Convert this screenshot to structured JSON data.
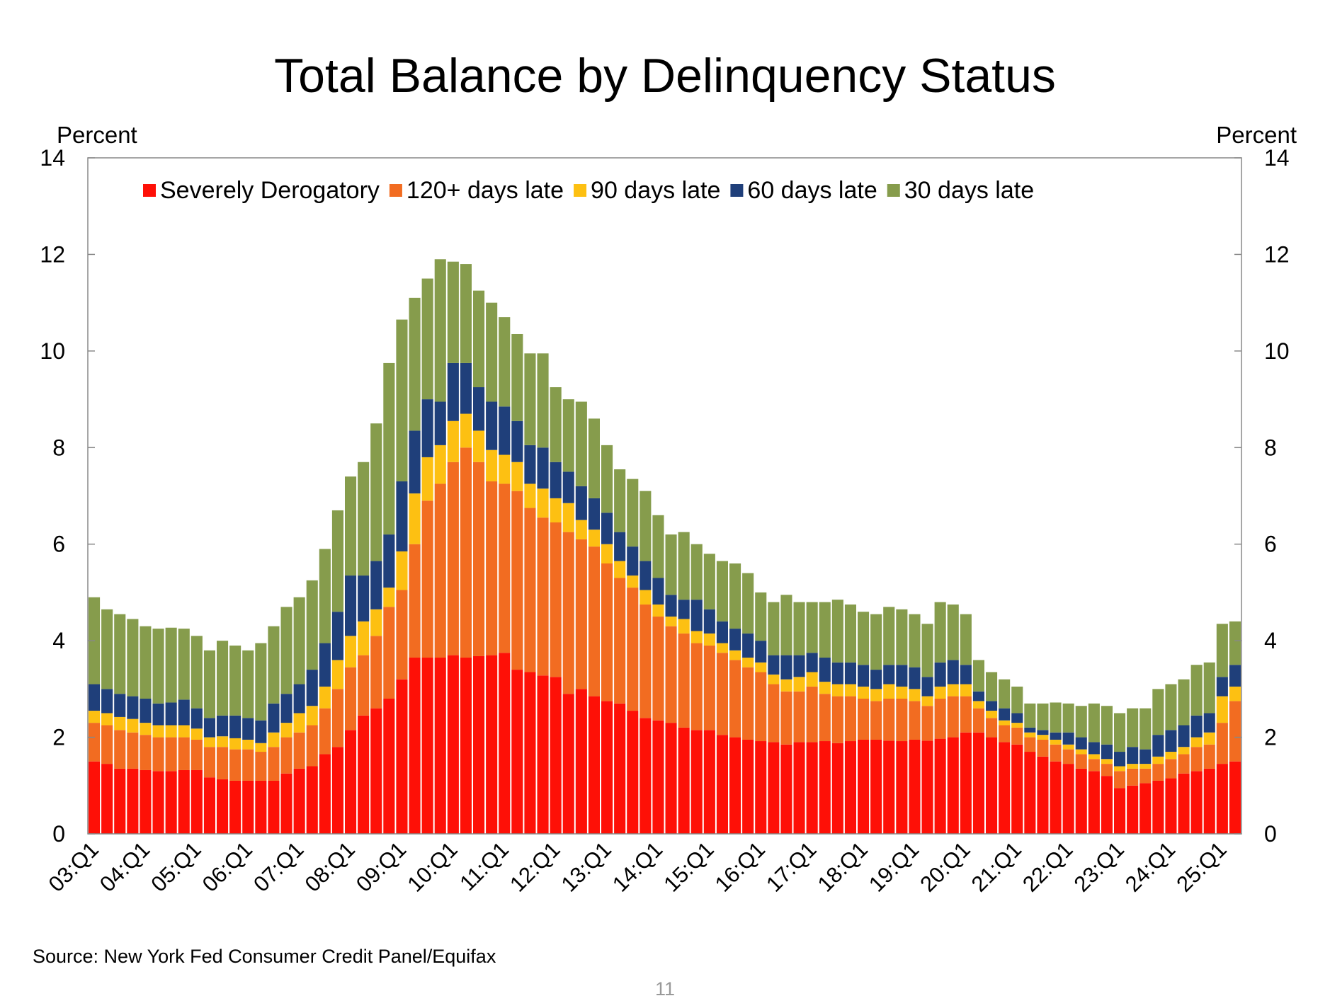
{
  "chart_data": {
    "type": "stacked_bar",
    "title": "Total Balance by Delinquency Status",
    "ylabel": "Percent",
    "y2label": "Percent",
    "source": "Source: New York Fed Consumer Credit Panel/Equifax",
    "page_number": "11",
    "ylim": [
      0,
      14
    ],
    "yticks": [
      0,
      2,
      4,
      6,
      8,
      10,
      12,
      14
    ],
    "y2lim": [
      0,
      14
    ],
    "y2ticks": [
      0,
      2,
      4,
      6,
      8,
      10,
      12,
      14
    ],
    "legend": "top",
    "categories": [
      "03:Q1",
      null,
      null,
      null,
      "04:Q1",
      null,
      null,
      null,
      "05:Q1",
      null,
      null,
      null,
      "06:Q1",
      null,
      null,
      null,
      "07:Q1",
      null,
      null,
      null,
      "08:Q1",
      null,
      null,
      null,
      "09:Q1",
      null,
      null,
      null,
      "10:Q1",
      null,
      null,
      null,
      "11:Q1",
      null,
      null,
      null,
      "12:Q1",
      null,
      null,
      null,
      "13:Q1",
      null,
      null,
      null,
      "14:Q1",
      null,
      null,
      null,
      "15:Q1",
      null,
      null,
      null,
      "16:Q1",
      null,
      null,
      null,
      "17:Q1",
      null,
      null,
      null,
      "18:Q1",
      null,
      null,
      null,
      "19:Q1",
      null,
      null,
      null,
      "20:Q1",
      null,
      null,
      null,
      "21:Q1",
      null,
      null,
      null,
      "22:Q1",
      null,
      null,
      null,
      "23:Q1",
      null,
      null,
      null,
      "24:Q1",
      null,
      null,
      null,
      "25:Q1",
      null
    ],
    "series": [
      {
        "name": "Severely Derogatory",
        "color": "#fe1007",
        "values": [
          1.5,
          1.45,
          1.35,
          1.35,
          1.32,
          1.3,
          1.3,
          1.32,
          1.32,
          1.17,
          1.13,
          1.1,
          1.1,
          1.1,
          1.1,
          1.25,
          1.35,
          1.4,
          1.65,
          1.8,
          2.15,
          2.45,
          2.6,
          2.8,
          3.2,
          3.65,
          3.65,
          3.65,
          3.7,
          3.65,
          3.68,
          3.7,
          3.75,
          3.4,
          3.35,
          3.28,
          3.25,
          2.9,
          3.0,
          2.85,
          2.75,
          2.7,
          2.55,
          2.4,
          2.35,
          2.3,
          2.2,
          2.15,
          2.15,
          2.05,
          2.0,
          1.95,
          1.92,
          1.9,
          1.85,
          1.9,
          1.9,
          1.92,
          1.88,
          1.92,
          1.95,
          1.95,
          1.93,
          1.92,
          1.95,
          1.93,
          1.97,
          2.0,
          2.1,
          2.1,
          2.0,
          1.9,
          1.85,
          1.7,
          1.6,
          1.5,
          1.45,
          1.35,
          1.3,
          1.2,
          0.95,
          1.0,
          1.05,
          1.1,
          1.15,
          1.25,
          1.3,
          1.35,
          1.45,
          1.5
        ]
      },
      {
        "name": "120+ days late",
        "color": "#f26c21",
        "values": [
          0.8,
          0.8,
          0.8,
          0.75,
          0.73,
          0.7,
          0.7,
          0.68,
          0.63,
          0.63,
          0.67,
          0.65,
          0.65,
          0.6,
          0.7,
          0.75,
          0.75,
          0.85,
          0.95,
          1.2,
          1.3,
          1.25,
          1.5,
          1.9,
          1.85,
          2.35,
          3.25,
          3.6,
          4.0,
          4.35,
          4.02,
          3.6,
          3.5,
          3.7,
          3.4,
          3.27,
          3.2,
          3.35,
          3.1,
          3.1,
          2.85,
          2.6,
          2.55,
          2.35,
          2.15,
          2.0,
          1.95,
          1.8,
          1.75,
          1.7,
          1.6,
          1.5,
          1.43,
          1.2,
          1.1,
          1.05,
          1.15,
          0.98,
          0.97,
          0.93,
          0.85,
          0.8,
          0.87,
          0.88,
          0.8,
          0.72,
          0.83,
          0.85,
          0.75,
          0.5,
          0.4,
          0.35,
          0.35,
          0.3,
          0.35,
          0.35,
          0.3,
          0.3,
          0.25,
          0.25,
          0.35,
          0.35,
          0.3,
          0.35,
          0.4,
          0.4,
          0.5,
          0.5,
          0.85,
          1.25
        ]
      },
      {
        "name": "90 days late",
        "color": "#fdc012",
        "values": [
          0.25,
          0.25,
          0.27,
          0.28,
          0.25,
          0.25,
          0.25,
          0.25,
          0.23,
          0.2,
          0.22,
          0.23,
          0.2,
          0.18,
          0.3,
          0.3,
          0.4,
          0.4,
          0.45,
          0.6,
          0.65,
          0.7,
          0.55,
          0.4,
          0.8,
          1.05,
          0.9,
          0.8,
          0.85,
          0.7,
          0.65,
          0.65,
          0.6,
          0.6,
          0.5,
          0.6,
          0.5,
          0.6,
          0.4,
          0.35,
          0.4,
          0.35,
          0.25,
          0.3,
          0.25,
          0.2,
          0.3,
          0.25,
          0.25,
          0.2,
          0.2,
          0.2,
          0.2,
          0.2,
          0.25,
          0.3,
          0.3,
          0.25,
          0.25,
          0.25,
          0.25,
          0.25,
          0.3,
          0.25,
          0.25,
          0.2,
          0.25,
          0.25,
          0.25,
          0.15,
          0.15,
          0.1,
          0.1,
          0.1,
          0.1,
          0.1,
          0.1,
          0.1,
          0.1,
          0.1,
          0.1,
          0.1,
          0.1,
          0.15,
          0.15,
          0.15,
          0.2,
          0.25,
          0.55,
          0.3
        ]
      },
      {
        "name": "60 days late",
        "color": "#1f3f7a",
        "values": [
          0.55,
          0.5,
          0.48,
          0.47,
          0.5,
          0.45,
          0.47,
          0.53,
          0.42,
          0.4,
          0.43,
          0.47,
          0.45,
          0.47,
          0.6,
          0.6,
          0.6,
          0.75,
          0.9,
          1.0,
          1.25,
          0.95,
          1.0,
          1.1,
          1.45,
          1.3,
          1.2,
          0.9,
          1.2,
          1.05,
          0.9,
          1.0,
          1.0,
          0.85,
          0.8,
          0.85,
          0.75,
          0.65,
          0.7,
          0.65,
          0.65,
          0.6,
          0.6,
          0.6,
          0.55,
          0.45,
          0.4,
          0.65,
          0.5,
          0.45,
          0.45,
          0.5,
          0.45,
          0.4,
          0.5,
          0.45,
          0.4,
          0.5,
          0.45,
          0.45,
          0.45,
          0.4,
          0.4,
          0.45,
          0.45,
          0.4,
          0.5,
          0.5,
          0.4,
          0.2,
          0.2,
          0.25,
          0.2,
          0.1,
          0.1,
          0.15,
          0.25,
          0.25,
          0.25,
          0.3,
          0.3,
          0.35,
          0.3,
          0.45,
          0.45,
          0.45,
          0.45,
          0.4,
          0.4,
          0.45
        ]
      },
      {
        "name": "30 days late",
        "color": "#869c4c",
        "values": [
          1.8,
          1.65,
          1.65,
          1.6,
          1.5,
          1.55,
          1.55,
          1.47,
          1.5,
          1.4,
          1.55,
          1.45,
          1.4,
          1.6,
          1.6,
          1.8,
          1.8,
          1.85,
          1.95,
          2.1,
          2.05,
          2.35,
          2.85,
          3.55,
          3.35,
          2.75,
          2.5,
          2.95,
          2.1,
          2.05,
          2.0,
          2.05,
          1.85,
          1.8,
          1.9,
          1.95,
          1.55,
          1.5,
          1.75,
          1.65,
          1.4,
          1.3,
          1.4,
          1.45,
          1.3,
          1.25,
          1.4,
          1.15,
          1.15,
          1.25,
          1.35,
          1.25,
          1.0,
          1.1,
          1.25,
          1.1,
          1.05,
          1.15,
          1.3,
          1.2,
          1.1,
          1.15,
          1.2,
          1.15,
          1.1,
          1.1,
          1.25,
          1.15,
          1.05,
          0.65,
          0.6,
          0.6,
          0.55,
          0.5,
          0.55,
          0.62,
          0.6,
          0.65,
          0.8,
          0.8,
          0.8,
          0.8,
          0.85,
          0.95,
          0.95,
          0.95,
          1.05,
          1.05,
          1.1,
          0.9
        ]
      }
    ]
  }
}
